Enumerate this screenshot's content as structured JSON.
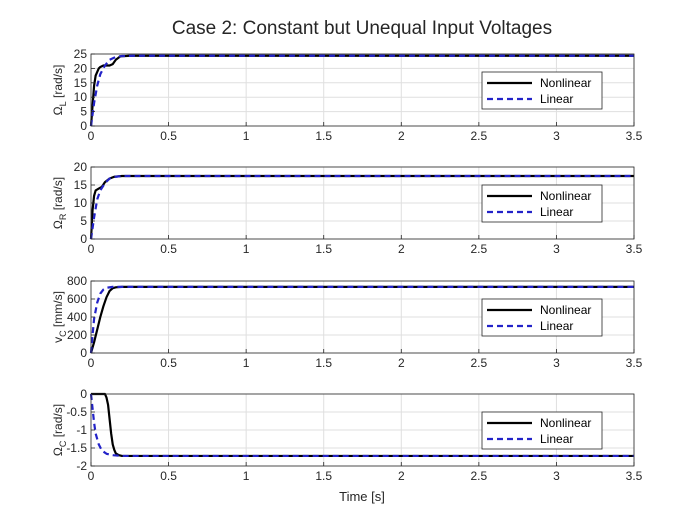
{
  "figure": {
    "title": "Case 2: Constant but Unequal Input Voltages",
    "xlabel": "Time [s]"
  },
  "chart_data": [
    {
      "type": "line",
      "ylabel": {
        "main": "Ω",
        "sub": "L",
        "unit": " [rad/s]"
      },
      "xlim": [
        0,
        3.5
      ],
      "ylim": [
        0,
        25
      ],
      "xticks": [
        0,
        0.5,
        1,
        1.5,
        2,
        2.5,
        3,
        3.5
      ],
      "yticks": [
        0,
        5,
        10,
        15,
        20,
        25
      ],
      "grid": true,
      "legend_position": "right-middle",
      "series": [
        {
          "name": "Nonlinear",
          "color": "#000000",
          "dash": "solid",
          "x": [
            0,
            0.01,
            0.02,
            0.03,
            0.05,
            0.06,
            0.08,
            0.12,
            0.14,
            0.16,
            0.19,
            0.25,
            3.5
          ],
          "y": [
            0,
            7,
            14,
            17.5,
            20,
            20.5,
            21,
            21,
            21.5,
            23,
            24.2,
            24.4,
            24.4
          ]
        },
        {
          "name": "Linear",
          "color": "#2323c8",
          "dash": "dashed",
          "x": [
            0,
            0.02,
            0.04,
            0.06,
            0.09,
            0.12,
            0.16,
            0.2,
            0.3,
            3.5
          ],
          "y": [
            0,
            8,
            14,
            18,
            21,
            23,
            24,
            24.3,
            24.4,
            24.4
          ]
        }
      ]
    },
    {
      "type": "line",
      "ylabel": {
        "main": "Ω",
        "sub": "R",
        "unit": " [rad/s]"
      },
      "xlim": [
        0,
        3.5
      ],
      "ylim": [
        0,
        20
      ],
      "xticks": [
        0,
        0.5,
        1,
        1.5,
        2,
        2.5,
        3,
        3.5
      ],
      "yticks": [
        0,
        5,
        10,
        15,
        20
      ],
      "grid": true,
      "legend_position": "right-middle",
      "series": [
        {
          "name": "Nonlinear",
          "color": "#000000",
          "dash": "solid",
          "x": [
            0,
            0.01,
            0.02,
            0.03,
            0.05,
            0.07,
            0.09,
            0.12,
            0.15,
            0.2,
            3.5
          ],
          "y": [
            0,
            8,
            12,
            13.5,
            14,
            14.5,
            15.8,
            16.8,
            17.3,
            17.5,
            17.5
          ]
        },
        {
          "name": "Linear",
          "color": "#2323c8",
          "dash": "dashed",
          "x": [
            0,
            0.02,
            0.04,
            0.06,
            0.09,
            0.12,
            0.16,
            0.2,
            3.5
          ],
          "y": [
            0,
            6,
            11,
            13.5,
            15.5,
            16.8,
            17.3,
            17.5,
            17.5
          ]
        }
      ]
    },
    {
      "type": "line",
      "ylabel": {
        "main": "v",
        "sub": "C",
        "unit": " [mm/s]"
      },
      "xlim": [
        0,
        3.5
      ],
      "ylim": [
        0,
        800
      ],
      "xticks": [
        0,
        0.5,
        1,
        1.5,
        2,
        2.5,
        3,
        3.5
      ],
      "yticks": [
        0,
        200,
        400,
        600,
        800
      ],
      "grid": true,
      "legend_position": "right-middle",
      "series": [
        {
          "name": "Nonlinear",
          "color": "#000000",
          "dash": "solid",
          "x": [
            0,
            0.02,
            0.04,
            0.06,
            0.08,
            0.1,
            0.12,
            0.14,
            0.16,
            0.2,
            3.5
          ],
          "y": [
            0,
            120,
            260,
            400,
            520,
            620,
            690,
            720,
            730,
            735,
            735
          ]
        },
        {
          "name": "Linear",
          "color": "#2323c8",
          "dash": "dashed",
          "x": [
            0,
            0.01,
            0.02,
            0.04,
            0.06,
            0.08,
            0.1,
            0.14,
            3.5
          ],
          "y": [
            0,
            200,
            380,
            560,
            660,
            705,
            725,
            735,
            735
          ]
        }
      ]
    },
    {
      "type": "line",
      "ylabel": {
        "main": "Ω",
        "sub": "C",
        "unit": " [rad/s]"
      },
      "xlim": [
        0,
        3.5
      ],
      "ylim": [
        -2,
        0
      ],
      "xticks": [
        0,
        0.5,
        1,
        1.5,
        2,
        2.5,
        3,
        3.5
      ],
      "yticks": [
        -2,
        -1.5,
        -1,
        -0.5,
        0
      ],
      "grid": true,
      "legend_position": "right-middle",
      "series": [
        {
          "name": "Nonlinear",
          "color": "#000000",
          "dash": "solid",
          "x": [
            0,
            0.09,
            0.1,
            0.11,
            0.12,
            0.13,
            0.14,
            0.15,
            0.16,
            0.18,
            0.2,
            0.25,
            3.5
          ],
          "y": [
            0,
            0,
            -0.1,
            -0.3,
            -0.7,
            -1.1,
            -1.4,
            -1.55,
            -1.65,
            -1.7,
            -1.72,
            -1.72,
            -1.72
          ]
        },
        {
          "name": "Linear",
          "color": "#2323c8",
          "dash": "dashed",
          "x": [
            0,
            0.01,
            0.02,
            0.03,
            0.05,
            0.07,
            0.1,
            0.14,
            0.2,
            3.5
          ],
          "y": [
            0,
            -0.4,
            -0.8,
            -1.1,
            -1.4,
            -1.57,
            -1.66,
            -1.7,
            -1.72,
            -1.72
          ]
        }
      ]
    }
  ]
}
